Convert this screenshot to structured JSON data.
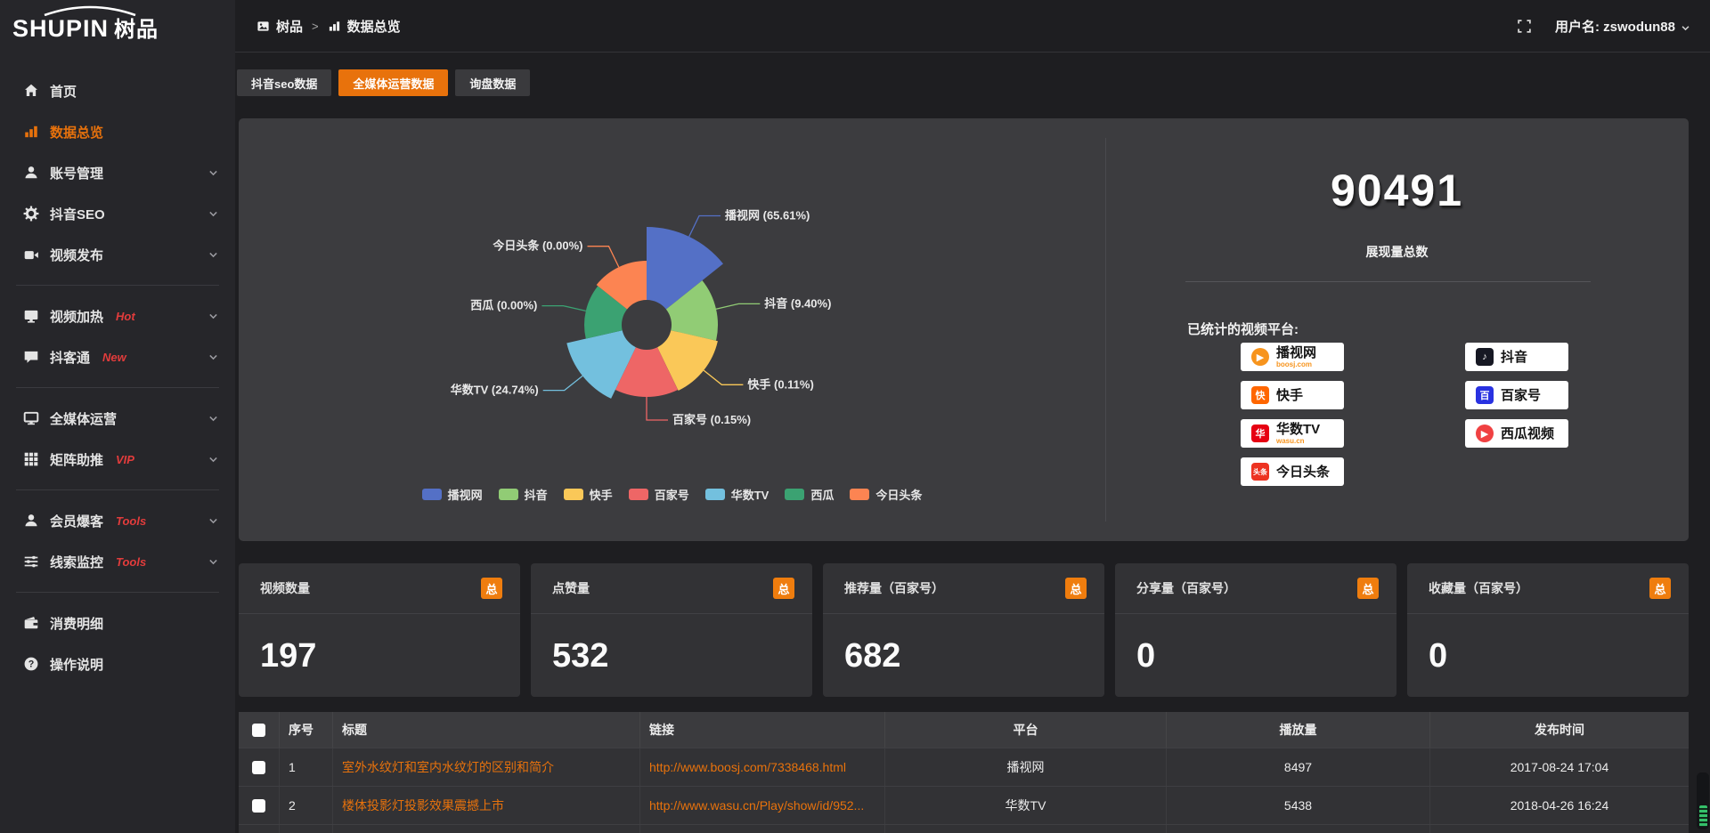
{
  "logo": {
    "brand": "SHUPIN",
    "brand_cjk": "树品"
  },
  "topbar": {
    "breadcrumb": [
      {
        "key": "shupin",
        "label": "树品",
        "icon": "app"
      },
      {
        "key": "data-overview",
        "label": "数据总览",
        "icon": "chart-bars"
      }
    ],
    "separator": ">",
    "user_label": "用户名: zswodun88"
  },
  "sidebar": {
    "items": [
      {
        "key": "home",
        "label": "首页",
        "icon": "home"
      },
      {
        "key": "data-overview",
        "label": "数据总览",
        "icon": "chart-bars",
        "active": true
      },
      {
        "key": "account-manage",
        "label": "账号管理",
        "icon": "user",
        "chevron": true
      },
      {
        "key": "douyin-seo",
        "label": "抖音SEO",
        "icon": "gear",
        "chevron": true
      },
      {
        "key": "video-publish",
        "label": "视频发布",
        "icon": "video",
        "chevron": true
      },
      {
        "divider": true
      },
      {
        "key": "video-heat",
        "label": "视频加热",
        "icon": "monitor-play",
        "badge": "Hot",
        "chevron": true
      },
      {
        "key": "douketong",
        "label": "抖客通",
        "icon": "chat",
        "badge": "New",
        "chevron": true
      },
      {
        "divider": true
      },
      {
        "key": "media-operation",
        "label": "全媒体运营",
        "icon": "monitor",
        "chevron": true
      },
      {
        "key": "matrix-boost",
        "label": "矩阵助推",
        "icon": "grid",
        "badge": "VIP",
        "chevron": true
      },
      {
        "divider": true
      },
      {
        "key": "member-baoke",
        "label": "会员爆客",
        "icon": "user",
        "badge": "Tools",
        "chevron": true
      },
      {
        "key": "lead-monitor",
        "label": "线索监控",
        "icon": "sliders",
        "badge": "Tools",
        "chevron": true
      },
      {
        "divider": true
      },
      {
        "key": "consume-detail",
        "label": "消费明细",
        "icon": "wallet"
      },
      {
        "key": "operation-guide",
        "label": "操作说明",
        "icon": "question"
      }
    ]
  },
  "tabs": [
    {
      "key": "douyin-seo-data",
      "label": "抖音seo数据",
      "active": false
    },
    {
      "key": "media-operation-data",
      "label": "全媒体运营数据",
      "active": true
    },
    {
      "key": "inquiry-data",
      "label": "询盘数据",
      "active": false
    }
  ],
  "chart_data": {
    "type": "pie",
    "style": "nightingale-rose",
    "labels": [
      "播视网",
      "抖音",
      "快手",
      "百家号",
      "华数TV",
      "西瓜",
      "今日头条"
    ],
    "values_percent": [
      65.61,
      9.4,
      0.11,
      0.15,
      24.74,
      0.0,
      0.0
    ],
    "colors": [
      "#5470c6",
      "#91cc75",
      "#fac858",
      "#ee6666",
      "#73c0de",
      "#3ba272",
      "#fc8452"
    ],
    "display_radii": [
      110,
      80,
      82,
      81,
      92,
      70,
      72
    ],
    "inner_radius": 28,
    "label_format": "{name} ({value}%)",
    "legend_position": "bottom"
  },
  "summary": {
    "value": "90491",
    "value_label": "展现量总数",
    "platforms_title": "已统计的视频平台:",
    "platform_columns": [
      [
        {
          "name": "播视网",
          "sub": "boosj.com",
          "color": "#f7941d",
          "glyph": "▶",
          "shape": "circle"
        },
        {
          "name": "快手",
          "color": "#ff6600",
          "glyph": "快",
          "shape": "square"
        },
        {
          "name": "华数TV",
          "sub": "wasu.cn",
          "color": "#e60012",
          "glyph": "华",
          "shape": "square"
        },
        {
          "name": "今日头条",
          "color": "#ed3321",
          "glyph": "头条",
          "shape": "square"
        }
      ],
      [
        {
          "name": "抖音",
          "color": "#161823",
          "glyph": "♪",
          "shape": "square"
        },
        {
          "name": "百家号",
          "color": "#2932e1",
          "glyph": "百",
          "shape": "square"
        },
        {
          "name": "西瓜视频",
          "color": "#f04142",
          "glyph": "▶",
          "shape": "circle"
        }
      ]
    ]
  },
  "stat_cards": [
    {
      "key": "video-count",
      "title": "视频数量",
      "badge": "总",
      "value": "197"
    },
    {
      "key": "like-count",
      "title": "点赞量",
      "badge": "总",
      "value": "532"
    },
    {
      "key": "recommend-count",
      "title": "推荐量（百家号）",
      "badge": "总",
      "value": "682"
    },
    {
      "key": "share-count",
      "title": "分享量（百家号）",
      "badge": "总",
      "value": "0"
    },
    {
      "key": "favorite-count",
      "title": "收藏量（百家号）",
      "badge": "总",
      "value": "0"
    }
  ],
  "table": {
    "columns": [
      "",
      "序号",
      "标题",
      "链接",
      "平台",
      "播放量",
      "发布时间"
    ],
    "rows": [
      {
        "index": "1",
        "title": "室外水纹灯和室内水纹灯的区别和简介",
        "link": "http://www.boosj.com/7338468.html",
        "platform": "播视网",
        "views": "8497",
        "time": "2017-08-24 17:04"
      },
      {
        "index": "2",
        "title": "楼体投影灯投影效果震撼上市",
        "link": "http://www.wasu.cn/Play/show/id/952...",
        "platform": "华数TV",
        "views": "5438",
        "time": "2018-04-26 16:24"
      }
    ]
  },
  "colors": {
    "accent": "#e8720c",
    "badge": "#ef7d0e",
    "hot_label": "#e23c3c",
    "panel": "#3c3c3f"
  }
}
